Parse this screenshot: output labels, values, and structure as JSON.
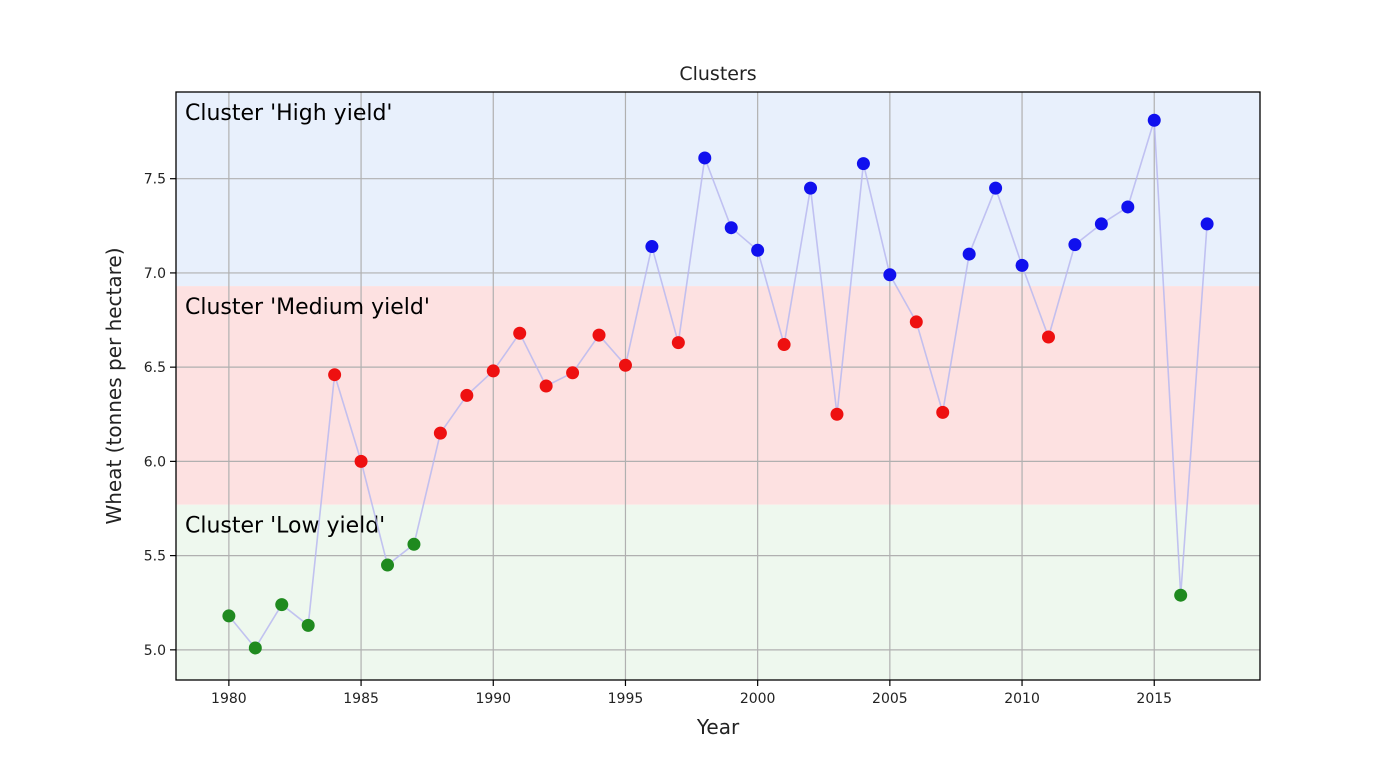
{
  "chart_data": {
    "type": "scatter",
    "title": "Clusters",
    "xlabel": "Year",
    "ylabel": "Wheat (tonnes per hectare)",
    "xlim": [
      1978,
      2019
    ],
    "ylim": [
      4.84,
      7.96
    ],
    "xticks": [
      "1980",
      "1985",
      "1990",
      "1995",
      "2000",
      "2005",
      "2010",
      "2015"
    ],
    "yticks": [
      "5.0",
      "5.5",
      "6.0",
      "6.5",
      "7.0",
      "7.5"
    ],
    "grid": true,
    "connecting_line_color": "#b8b8f0",
    "clusters": [
      {
        "name": "Cluster 'High yield'",
        "key": "high",
        "point_color": "#1010ee",
        "band_color": "#e8f0fc",
        "band_range": [
          6.93,
          7.96
        ]
      },
      {
        "name": "Cluster 'Medium yield'",
        "key": "medium",
        "point_color": "#ee1010",
        "band_color": "#fde1e1",
        "band_range": [
          5.77,
          6.93
        ]
      },
      {
        "name": "Cluster 'Low yield'",
        "key": "low",
        "point_color": "#1f8a1f",
        "band_color": "#eef8ee",
        "band_range": [
          4.84,
          5.77
        ]
      }
    ],
    "points": [
      {
        "x": 1980,
        "y": 5.18,
        "cluster": "low"
      },
      {
        "x": 1981,
        "y": 5.01,
        "cluster": "low"
      },
      {
        "x": 1982,
        "y": 5.24,
        "cluster": "low"
      },
      {
        "x": 1983,
        "y": 5.13,
        "cluster": "low"
      },
      {
        "x": 1984,
        "y": 6.46,
        "cluster": "medium"
      },
      {
        "x": 1985,
        "y": 6.0,
        "cluster": "medium"
      },
      {
        "x": 1986,
        "y": 5.45,
        "cluster": "low"
      },
      {
        "x": 1987,
        "y": 5.56,
        "cluster": "low"
      },
      {
        "x": 1988,
        "y": 6.15,
        "cluster": "medium"
      },
      {
        "x": 1989,
        "y": 6.35,
        "cluster": "medium"
      },
      {
        "x": 1990,
        "y": 6.48,
        "cluster": "medium"
      },
      {
        "x": 1991,
        "y": 6.68,
        "cluster": "medium"
      },
      {
        "x": 1992,
        "y": 6.4,
        "cluster": "medium"
      },
      {
        "x": 1993,
        "y": 6.47,
        "cluster": "medium"
      },
      {
        "x": 1994,
        "y": 6.67,
        "cluster": "medium"
      },
      {
        "x": 1995,
        "y": 6.51,
        "cluster": "medium"
      },
      {
        "x": 1996,
        "y": 7.14,
        "cluster": "high"
      },
      {
        "x": 1997,
        "y": 6.63,
        "cluster": "medium"
      },
      {
        "x": 1998,
        "y": 7.61,
        "cluster": "high"
      },
      {
        "x": 1999,
        "y": 7.24,
        "cluster": "high"
      },
      {
        "x": 2000,
        "y": 7.12,
        "cluster": "high"
      },
      {
        "x": 2001,
        "y": 6.62,
        "cluster": "medium"
      },
      {
        "x": 2002,
        "y": 7.45,
        "cluster": "high"
      },
      {
        "x": 2003,
        "y": 6.25,
        "cluster": "medium"
      },
      {
        "x": 2004,
        "y": 7.58,
        "cluster": "high"
      },
      {
        "x": 2005,
        "y": 6.99,
        "cluster": "high"
      },
      {
        "x": 2006,
        "y": 6.74,
        "cluster": "medium"
      },
      {
        "x": 2007,
        "y": 6.26,
        "cluster": "medium"
      },
      {
        "x": 2008,
        "y": 7.1,
        "cluster": "high"
      },
      {
        "x": 2009,
        "y": 7.45,
        "cluster": "high"
      },
      {
        "x": 2010,
        "y": 7.04,
        "cluster": "high"
      },
      {
        "x": 2011,
        "y": 6.66,
        "cluster": "medium"
      },
      {
        "x": 2012,
        "y": 7.15,
        "cluster": "high"
      },
      {
        "x": 2013,
        "y": 7.26,
        "cluster": "high"
      },
      {
        "x": 2014,
        "y": 7.35,
        "cluster": "high"
      },
      {
        "x": 2015,
        "y": 7.81,
        "cluster": "high"
      },
      {
        "x": 2016,
        "y": 5.29,
        "cluster": "low"
      },
      {
        "x": 2017,
        "y": 7.26,
        "cluster": "high"
      }
    ]
  }
}
